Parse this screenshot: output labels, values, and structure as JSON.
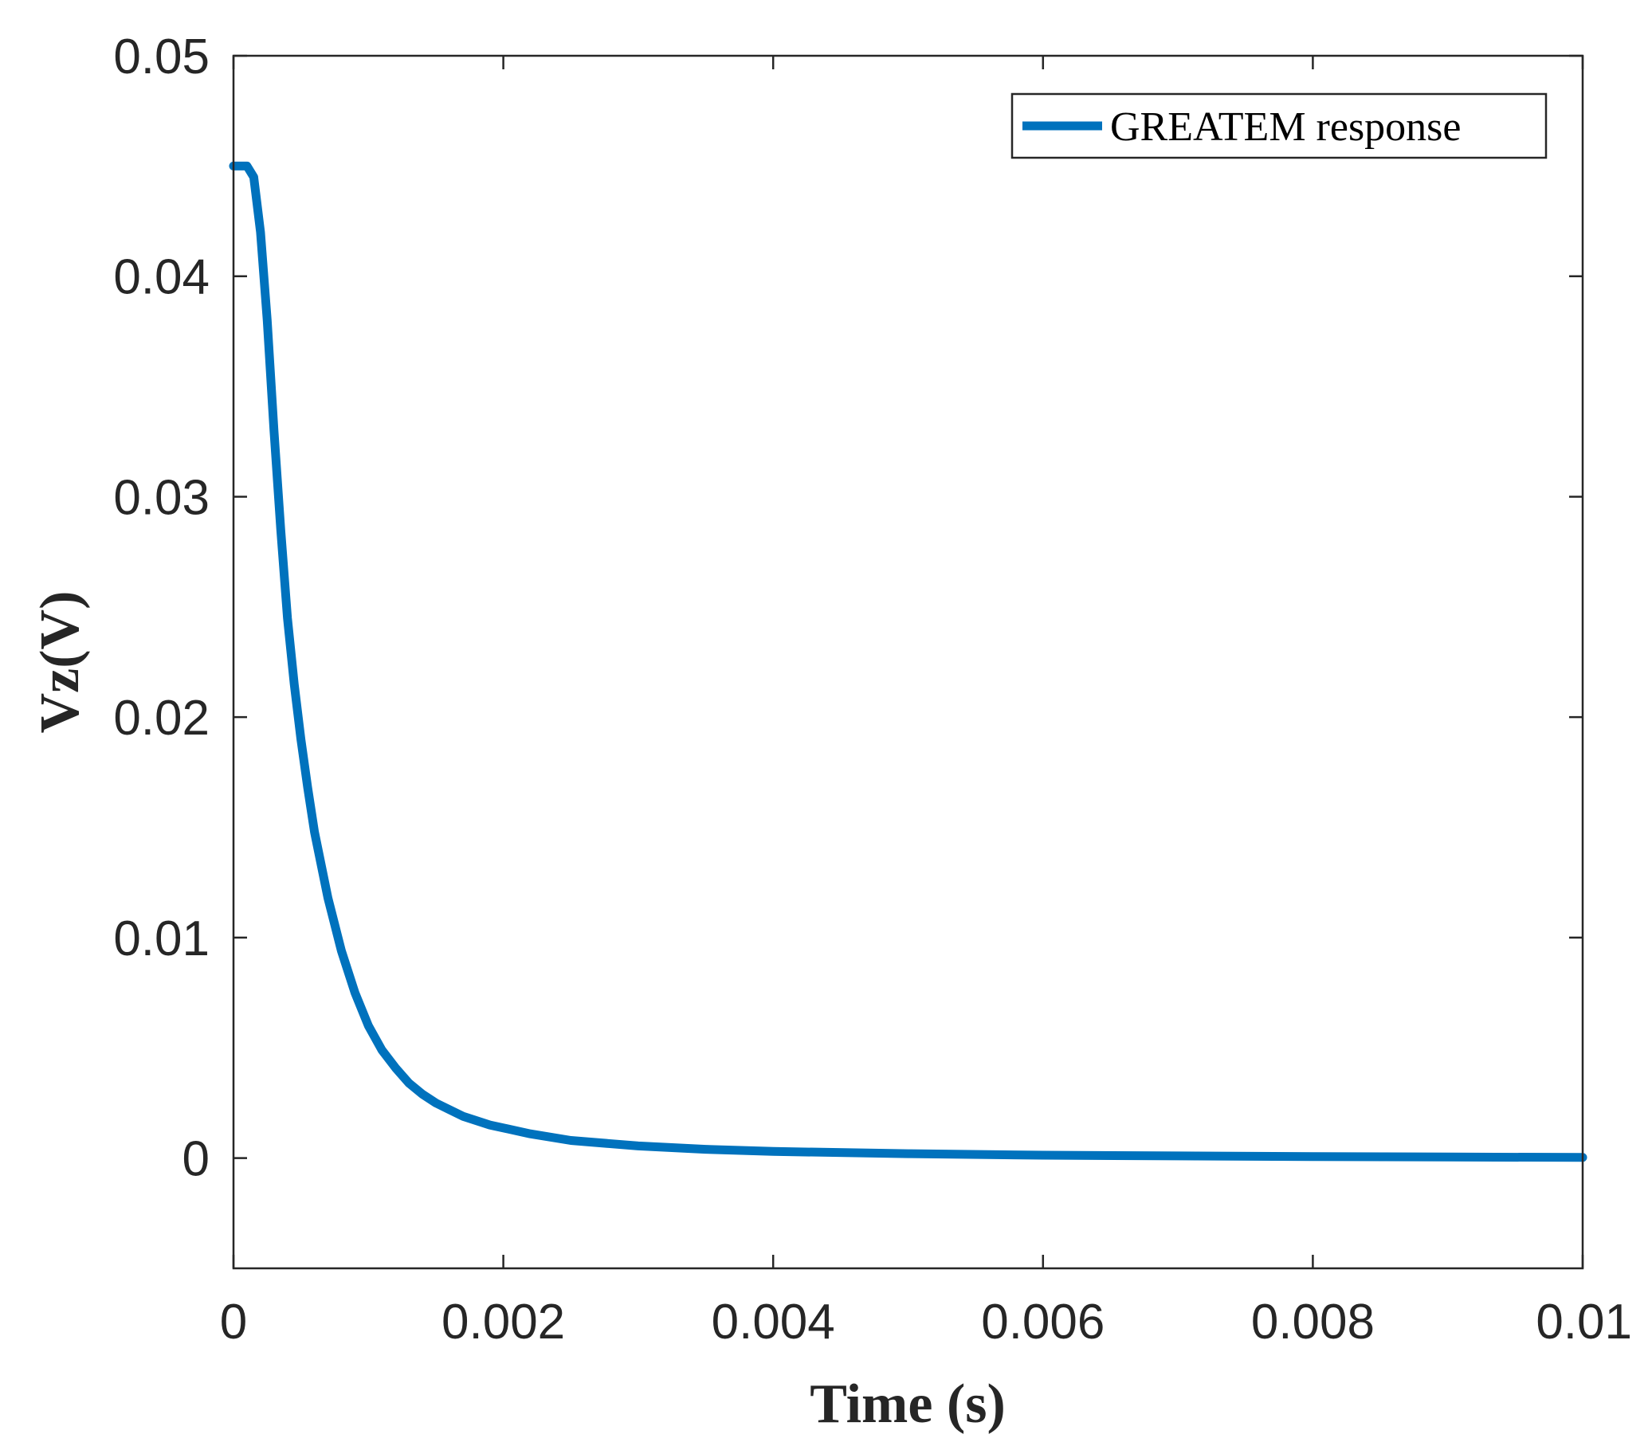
{
  "chart_data": {
    "type": "line",
    "xlabel": "Time (s)",
    "ylabel": "Vz(V)",
    "xlim": [
      0,
      0.01
    ],
    "ylim": [
      -0.005,
      0.05
    ],
    "xticks": [
      0,
      0.002,
      0.004,
      0.006,
      0.008,
      0.01
    ],
    "xtick_labels": [
      "0",
      "0.002",
      "0.004",
      "0.006",
      "0.008",
      "0.01"
    ],
    "yticks": [
      0,
      0.01,
      0.02,
      0.03,
      0.04,
      0.05
    ],
    "ytick_labels": [
      "0",
      "0.01",
      "0.02",
      "0.03",
      "0.04",
      "0.05"
    ],
    "grid": false,
    "legend_position": "top-right",
    "series": [
      {
        "name": "GREATEM response",
        "color": "#0072BD",
        "x": [
          0,
          0.0001,
          0.00015,
          0.0002,
          0.00025,
          0.0003,
          0.00035,
          0.0004,
          0.00045,
          0.0005,
          0.00055,
          0.0006,
          0.0007,
          0.0008,
          0.0009,
          0.001,
          0.0011,
          0.0012,
          0.0013,
          0.0014,
          0.0015,
          0.0017,
          0.0019,
          0.0022,
          0.0025,
          0.003,
          0.0035,
          0.004,
          0.005,
          0.006,
          0.007,
          0.008,
          0.009,
          0.01
        ],
        "y": [
          0.045,
          0.045,
          0.0445,
          0.042,
          0.038,
          0.033,
          0.0285,
          0.0245,
          0.0215,
          0.019,
          0.0168,
          0.0148,
          0.0118,
          0.0094,
          0.0075,
          0.006,
          0.0049,
          0.0041,
          0.0034,
          0.0029,
          0.0025,
          0.0019,
          0.0015,
          0.0011,
          0.0008,
          0.00055,
          0.0004,
          0.0003,
          0.0002,
          0.00013,
          0.0001,
          7e-05,
          5e-05,
          3e-05
        ]
      }
    ]
  }
}
